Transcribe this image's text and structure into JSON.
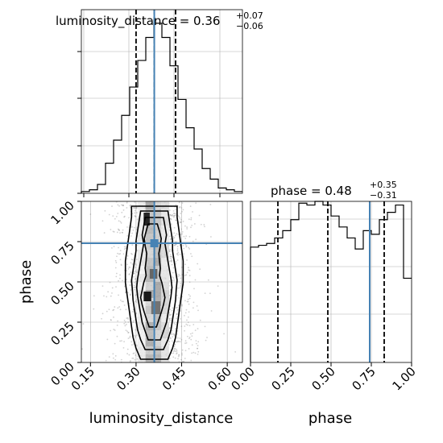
{
  "colors": {
    "truth": "#4682b4",
    "line": "#000000",
    "grid": "#b0b0b0",
    "frame": "#000000",
    "points": "#7f7f7f"
  },
  "chart_data": [
    {
      "id": "dist_hist",
      "type": "bar",
      "title": {
        "main": "luminosity_distance = 0.36",
        "plus": "+0.07",
        "minus": "−0.06"
      },
      "xlim": [
        0.12,
        0.65
      ],
      "bins": {
        "edges": [
          0.12,
          0.1465,
          0.173,
          0.1995,
          0.226,
          0.2525,
          0.279,
          0.3055,
          0.332,
          0.3585,
          0.385,
          0.4115,
          0.438,
          0.4645,
          0.491,
          0.5175,
          0.544,
          0.5705,
          0.597,
          0.6235,
          0.65
        ],
        "counts": [
          1,
          2,
          5,
          17,
          30,
          44,
          60,
          75,
          88,
          96,
          88,
          72,
          53,
          37,
          25,
          14,
          8,
          3,
          2,
          1
        ]
      },
      "quantile_lines": [
        0.3,
        0.36,
        0.43
      ],
      "truth": 0.36,
      "grid": true
    },
    {
      "id": "phase_hist",
      "type": "bar",
      "title": {
        "main": "phase = 0.48",
        "plus": "+0.35",
        "minus": "−0.31"
      },
      "xlim": [
        0.0,
        1.0
      ],
      "xticks": [
        "0.00",
        "0.25",
        "0.50",
        "0.75",
        "1.00"
      ],
      "xlabel": "phase",
      "bins": {
        "edges": [
          0.0,
          0.05,
          0.1,
          0.15,
          0.2,
          0.25,
          0.3,
          0.35,
          0.4,
          0.45,
          0.5,
          0.55,
          0.6,
          0.65,
          0.7,
          0.75,
          0.8,
          0.85,
          0.9,
          0.95,
          1.0
        ],
        "counts": [
          0.63,
          0.64,
          0.65,
          0.68,
          0.72,
          0.78,
          0.87,
          0.86,
          0.88,
          0.86,
          0.8,
          0.74,
          0.68,
          0.62,
          0.72,
          0.7,
          0.78,
          0.82,
          0.86,
          0.46
        ]
      },
      "quantile_lines": [
        0.17,
        0.48,
        0.83
      ],
      "truth": 0.74,
      "grid": true
    },
    {
      "id": "joint_2d",
      "type": "heatmap",
      "xlabel": "luminosity_distance",
      "ylabel": "phase",
      "xlim": [
        0.12,
        0.65
      ],
      "ylim": [
        0.0,
        1.0
      ],
      "xticks": [
        "0.15",
        "0.30",
        "0.45",
        "0.60"
      ],
      "yticks": [
        "0.00",
        "0.25",
        "0.50",
        "0.75",
        "1.00"
      ],
      "truth": {
        "x": 0.36,
        "y": 0.74
      },
      "density_columns": [
        {
          "x0": 0.305,
          "x1": 0.331,
          "shade": 0.1
        },
        {
          "x0": 0.331,
          "x1": 0.357,
          "shade": 0.35
        },
        {
          "x0": 0.357,
          "x1": 0.383,
          "shade": 0.35
        },
        {
          "x0": 0.383,
          "x1": 0.409,
          "shade": 0.18
        }
      ],
      "dark_cells": [
        {
          "x0": 0.325,
          "x1": 0.345,
          "y0": 0.85,
          "y1": 0.93,
          "shade": 0.85
        },
        {
          "x0": 0.345,
          "x1": 0.37,
          "y0": 0.52,
          "y1": 0.58,
          "shade": 0.6
        },
        {
          "x0": 0.325,
          "x1": 0.35,
          "y0": 0.38,
          "y1": 0.44,
          "shade": 0.9
        },
        {
          "x0": 0.35,
          "x1": 0.38,
          "y0": 0.3,
          "y1": 0.38,
          "shade": 0.55
        }
      ],
      "contours": [
        {
          "level": 3,
          "x_center": 0.36,
          "y_range": [
            0.02,
            0.97
          ],
          "halfwidths": [
            0.045,
            0.06,
            0.07,
            0.075,
            0.08,
            0.085,
            0.09,
            0.095,
            0.095,
            0.095,
            0.09,
            0.085,
            0.08,
            0.075,
            0.075
          ]
        },
        {
          "level": 2,
          "x_center": 0.36,
          "y_range": [
            0.08,
            0.94
          ],
          "halfwidths": [
            0.03,
            0.045,
            0.055,
            0.06,
            0.065,
            0.07,
            0.072,
            0.075,
            0.07,
            0.065,
            0.06,
            0.06,
            0.055,
            0.05,
            0.045
          ]
        },
        {
          "level": 1,
          "x_center": 0.36,
          "y_range": [
            0.14,
            0.9
          ],
          "halfwidths": [
            0.02,
            0.03,
            0.04,
            0.045,
            0.05,
            0.055,
            0.058,
            0.055,
            0.05,
            0.045,
            0.04,
            0.035,
            0.04,
            0.035,
            0.03
          ]
        },
        {
          "level": 0,
          "x_center": 0.355,
          "y_range": [
            0.22,
            0.86
          ],
          "halfwidths": [
            0.012,
            0.02,
            0.028,
            0.035,
            0.04,
            0.035,
            0.03,
            0.022,
            0.025,
            0.022,
            0.02,
            0.025,
            0.028,
            0.022,
            0.015
          ]
        }
      ],
      "scatter_sigma_x": 0.07,
      "scatter_count": 1400
    }
  ]
}
